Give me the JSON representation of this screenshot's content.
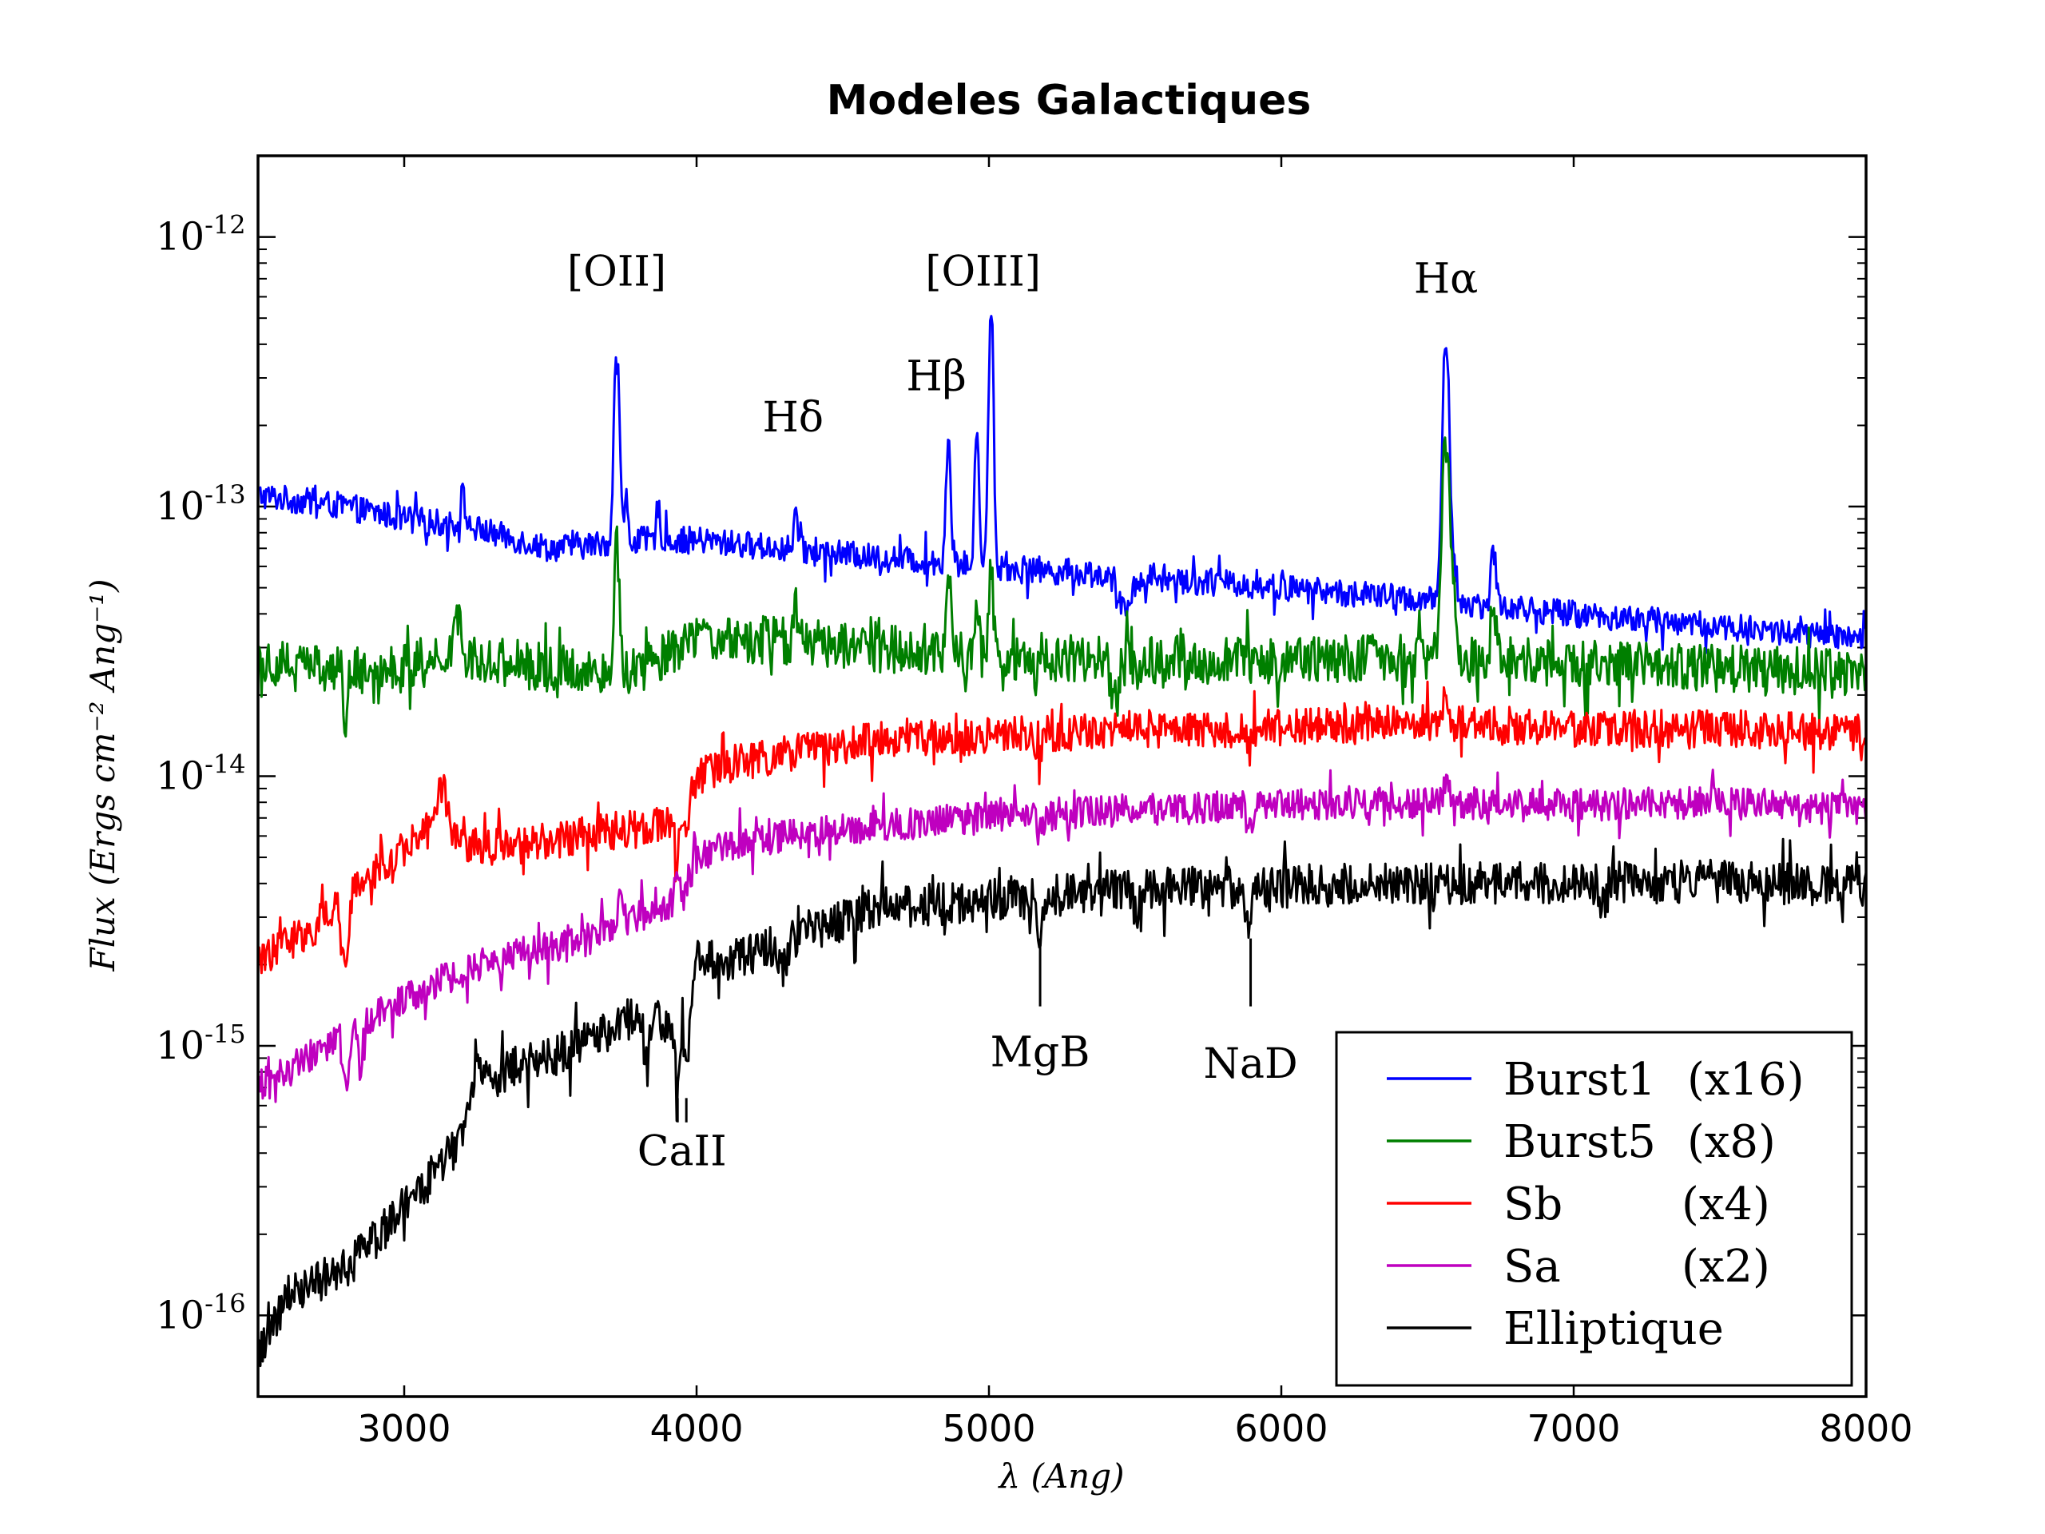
{
  "chart_data": {
    "type": "line",
    "title": "Modeles Galactiques",
    "xlabel": "λ (Ang)",
    "ylabel": "Flux (Ergs cm⁻² Ang⁻¹)",
    "xscale": "linear",
    "yscale": "log",
    "xlim": [
      2500,
      8000
    ],
    "ylim": [
      5e-17,
      2e-12
    ],
    "x_ticks": [
      3000,
      4000,
      5000,
      6000,
      7000,
      8000
    ],
    "x_tick_labels": [
      "3000",
      "4000",
      "5000",
      "6000",
      "7000",
      "8000"
    ],
    "y_ticks": [
      {
        "base": "10",
        "exp": "-16",
        "value": -16
      },
      {
        "base": "10",
        "exp": "-15",
        "value": -15
      },
      {
        "base": "10",
        "exp": "-14",
        "value": -14
      },
      {
        "base": "10",
        "exp": "-13",
        "value": -13
      },
      {
        "base": "10",
        "exp": "-12",
        "value": -12
      }
    ],
    "legend_location": "lower-right",
    "series": [
      {
        "name": "Burst1 (x16)",
        "label": "Burst1",
        "factor": "(x16)",
        "color": "#0000ff",
        "x": [
          2500,
          2800,
          3000,
          3200,
          3500,
          3800,
          4000,
          4300,
          4600,
          5000,
          5500,
          6000,
          6500,
          7000,
          7500,
          8000
        ],
        "y": [
          1.1e-13,
          1e-13,
          9e-14,
          8.5e-14,
          7e-14,
          7.5e-14,
          7.5e-14,
          7e-14,
          6.5e-14,
          6e-14,
          5.5e-14,
          5e-14,
          4.5e-14,
          4e-14,
          3.6e-14,
          3.2e-14
        ],
        "noise": 0.05,
        "features": [
          {
            "x": 3727,
            "amp": 4.0,
            "w": 8
          },
          {
            "x": 3760,
            "amp": 0.5,
            "w": 5
          },
          {
            "x": 3869,
            "amp": 0.35,
            "w": 6
          },
          {
            "x": 4340,
            "amp": 0.4,
            "w": 6
          },
          {
            "x": 4861,
            "amp": 1.9,
            "w": 7
          },
          {
            "x": 4959,
            "amp": 2.5,
            "w": 6
          },
          {
            "x": 5007,
            "amp": 7.0,
            "w": 7
          },
          {
            "x": 6563,
            "amp": 8.5,
            "w": 9
          },
          {
            "x": 6590,
            "amp": 0.4,
            "w": 6
          },
          {
            "x": 6725,
            "amp": 0.65,
            "w": 8
          },
          {
            "x": 3200,
            "amp": 0.3,
            "w": 8
          },
          {
            "x": 5460,
            "amp": -0.25,
            "w": 25
          }
        ]
      },
      {
        "name": "Burst5 (x8)",
        "label": "Burst5",
        "factor": "(x8)",
        "color": "#007f00",
        "x": [
          2500,
          2800,
          3000,
          3200,
          3500,
          3800,
          4000,
          4300,
          4600,
          5000,
          5500,
          6000,
          6500,
          7000,
          7500,
          8000
        ],
        "y": [
          2.7e-14,
          2.5e-14,
          2.5e-14,
          2.8e-14,
          2.5e-14,
          2.5e-14,
          3.2e-14,
          3.2e-14,
          3e-14,
          2.8e-14,
          2.7e-14,
          2.7e-14,
          2.8e-14,
          2.6e-14,
          2.5e-14,
          2.4e-14
        ],
        "noise": 0.09,
        "features": [
          {
            "x": 3727,
            "amp": 2.0,
            "w": 7
          },
          {
            "x": 4340,
            "amp": 0.3,
            "w": 6
          },
          {
            "x": 4861,
            "amp": 1.0,
            "w": 7
          },
          {
            "x": 4959,
            "amp": 0.5,
            "w": 6
          },
          {
            "x": 5007,
            "amp": 1.2,
            "w": 7
          },
          {
            "x": 6563,
            "amp": 5.5,
            "w": 10
          },
          {
            "x": 6590,
            "amp": 0.6,
            "w": 8
          },
          {
            "x": 6725,
            "amp": 0.6,
            "w": 8
          },
          {
            "x": 3180,
            "amp": 0.5,
            "w": 12
          },
          {
            "x": 2800,
            "amp": -0.35,
            "w": 8
          },
          {
            "x": 5430,
            "amp": -0.3,
            "w": 15
          }
        ]
      },
      {
        "name": "Sb (x4)",
        "label": "Sb",
        "factor": "(x4)",
        "color": "#ff0000",
        "x": [
          2500,
          2700,
          2900,
          3100,
          3200,
          3400,
          3600,
          3800,
          3950,
          4000,
          4100,
          4300,
          4600,
          5000,
          5500,
          6000,
          6500,
          7000,
          7500,
          8000
        ],
        "y": [
          2.1e-15,
          2.8e-15,
          4.5e-15,
          6.5e-15,
          5.5e-15,
          5.5e-15,
          6e-15,
          6.5e-15,
          7e-15,
          1e-14,
          1.1e-14,
          1.2e-14,
          1.35e-14,
          1.4e-14,
          1.5e-14,
          1.5e-14,
          1.6e-14,
          1.5e-14,
          1.5e-14,
          1.45e-14
        ],
        "noise": 0.07,
        "features": [
          {
            "x": 2800,
            "amp": -0.45,
            "w": 10
          },
          {
            "x": 3130,
            "amp": 0.45,
            "w": 15
          },
          {
            "x": 3933,
            "amp": -0.3,
            "w": 8
          },
          {
            "x": 3968,
            "amp": -0.3,
            "w": 8
          },
          {
            "x": 5175,
            "amp": -0.15,
            "w": 10
          },
          {
            "x": 5890,
            "amp": -0.15,
            "w": 8
          },
          {
            "x": 6563,
            "amp": 0.12,
            "w": 8
          }
        ]
      },
      {
        "name": "Sa (x2)",
        "label": "Sa",
        "factor": "(x2)",
        "color": "#bf00bf",
        "x": [
          2500,
          2800,
          3000,
          3200,
          3400,
          3600,
          3800,
          3950,
          4000,
          4100,
          4300,
          4600,
          5000,
          5500,
          6000,
          6500,
          7000,
          7500,
          8000
        ],
        "y": [
          7e-16,
          1.1e-15,
          1.5e-15,
          1.9e-15,
          2.2e-15,
          2.4e-15,
          3e-15,
          3.5e-15,
          5e-15,
          5.5e-15,
          6e-15,
          6.5e-15,
          7e-15,
          7.5e-15,
          7.8e-15,
          8e-15,
          7.8e-15,
          8e-15,
          7.5e-15
        ],
        "noise": 0.06,
        "features": [
          {
            "x": 2800,
            "amp": -0.4,
            "w": 10
          },
          {
            "x": 2850,
            "amp": -0.3,
            "w": 8
          },
          {
            "x": 3740,
            "amp": 0.3,
            "w": 10
          },
          {
            "x": 3933,
            "amp": 0.25,
            "w": 8
          },
          {
            "x": 5175,
            "amp": -0.15,
            "w": 10
          },
          {
            "x": 5890,
            "amp": -0.2,
            "w": 8
          },
          {
            "x": 6563,
            "amp": 0.2,
            "w": 10
          }
        ]
      },
      {
        "name": "Elliptique",
        "label": "Elliptique",
        "factor": "",
        "color": "#000000",
        "x": [
          2500,
          2600,
          2800,
          3000,
          3200,
          3250,
          3400,
          3600,
          3800,
          3900,
          3960,
          4000,
          4100,
          4200,
          4400,
          4600,
          5000,
          5500,
          6000,
          6500,
          7000,
          7500,
          8000
        ],
        "y": [
          7e-17,
          1.2e-16,
          1.5e-16,
          2.5e-16,
          4.5e-16,
          7e-16,
          8.5e-16,
          1e-15,
          1.3e-15,
          1.2e-15,
          1.2e-15,
          2.1e-15,
          2.1e-15,
          2.2e-15,
          2.7e-15,
          3.2e-15,
          3.5e-15,
          3.8e-15,
          3.9e-15,
          4e-15,
          4e-15,
          4.1e-15,
          3.9e-15
        ],
        "noise": 0.08,
        "features": [
          {
            "x": 3830,
            "amp": -0.35,
            "w": 10
          },
          {
            "x": 3933,
            "amp": -0.4,
            "w": 7
          },
          {
            "x": 3968,
            "amp": -0.4,
            "w": 7
          },
          {
            "x": 4300,
            "amp": -0.2,
            "w": 10
          },
          {
            "x": 5175,
            "amp": -0.3,
            "w": 12
          },
          {
            "x": 5500,
            "amp": -0.12,
            "w": 10
          },
          {
            "x": 5890,
            "amp": -0.35,
            "w": 8
          },
          {
            "x": 7100,
            "amp": -0.12,
            "w": 15
          },
          {
            "x": 3250,
            "amp": 0.25,
            "w": 10
          }
        ]
      }
    ],
    "annotations": [
      {
        "text": "[OII]",
        "x": 3727,
        "y": 6.6e-13
      },
      {
        "text": "[OIII]",
        "x": 4980,
        "y": 6.6e-13
      },
      {
        "text": "Hβ",
        "x": 4820,
        "y": 2.7e-13
      },
      {
        "text": "Hδ",
        "x": 4330,
        "y": 1.9e-13
      },
      {
        "text": "Hα",
        "x": 6563,
        "y": 6.2e-13
      },
      {
        "text": "CaII",
        "x": 3950,
        "y": 3.6e-16
      },
      {
        "text": "MgB",
        "x": 5175,
        "y": 8.4e-16
      },
      {
        "text": "NaD",
        "x": 5895,
        "y": 7.6e-16
      }
    ],
    "markers": [
      {
        "x": 5175,
        "y_from": 2.5e-15,
        "y_to": 1.4e-15
      },
      {
        "x": 5895,
        "y_from": 2.5e-15,
        "y_to": 1.4e-15
      },
      {
        "x": 3935,
        "y_from": 6.4e-16,
        "y_to": 5.2e-16
      },
      {
        "x": 3965,
        "y_from": 6.4e-16,
        "y_to": 5.2e-16
      }
    ]
  }
}
